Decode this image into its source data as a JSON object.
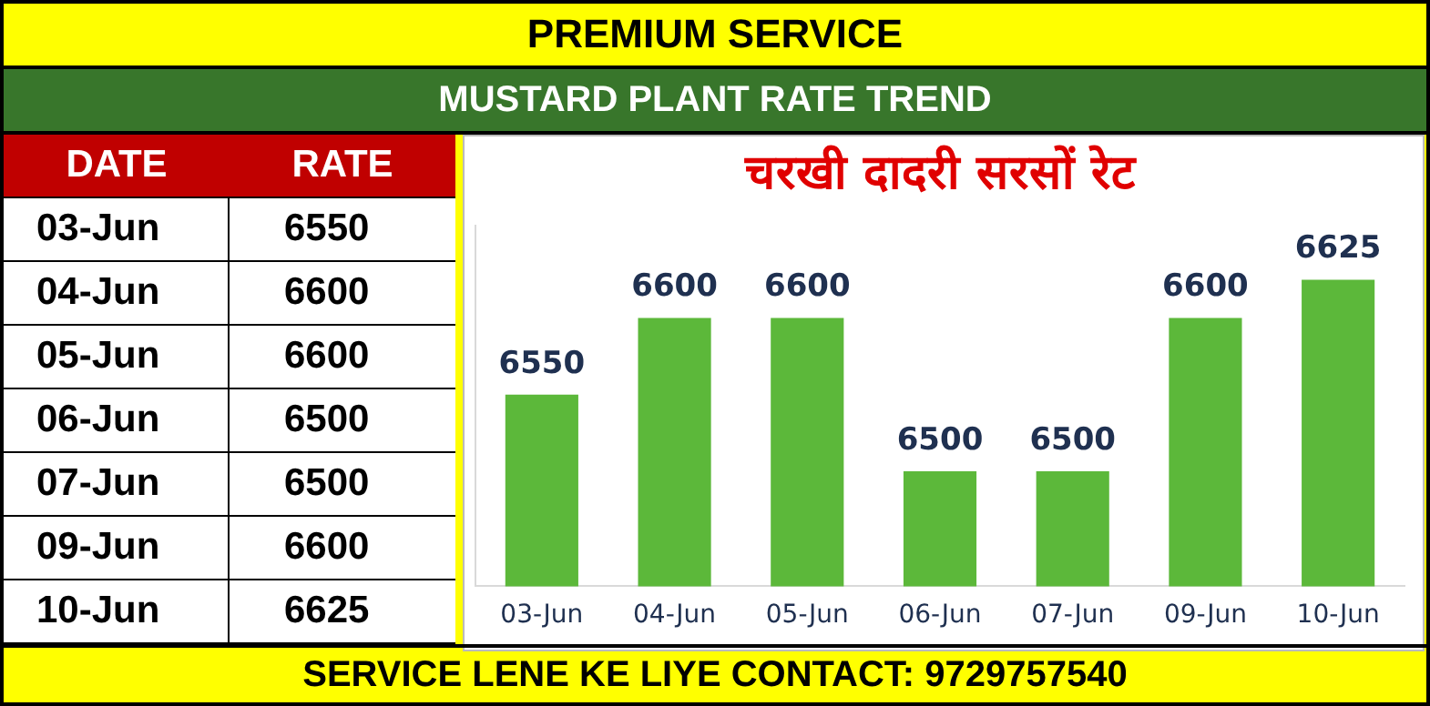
{
  "chart_data": [
    {
      "type": "other",
      "annotations": [
        "PREMIUM SERVICE",
        "MUSTARD PLANT RATE TREND",
        "SERVICE LENE KE LIYE CONTACT: 9729757540",
        "DATE",
        "RATE"
      ],
      "categories": [
        "03-Jun",
        "04-Jun",
        "05-Jun",
        "06-Jun",
        "07-Jun",
        "09-Jun",
        "10-Jun"
      ],
      "values": [
        6550,
        6600,
        6600,
        6500,
        6500,
        6600,
        6625
      ],
      "data_labels": true
    },
    {
      "type": "bar",
      "title": "चरखी दादरी सरसों रेट",
      "categories": [
        "03-Jun",
        "04-Jun",
        "05-Jun",
        "06-Jun",
        "07-Jun",
        "09-Jun",
        "10-Jun"
      ],
      "values": [
        6550,
        6600,
        6600,
        6500,
        6500,
        6600,
        6625
      ],
      "color": "#5cb83a",
      "ylim": [
        6425,
        6660
      ],
      "tick_labels": "x",
      "data_labels": true
    }
  ]
}
